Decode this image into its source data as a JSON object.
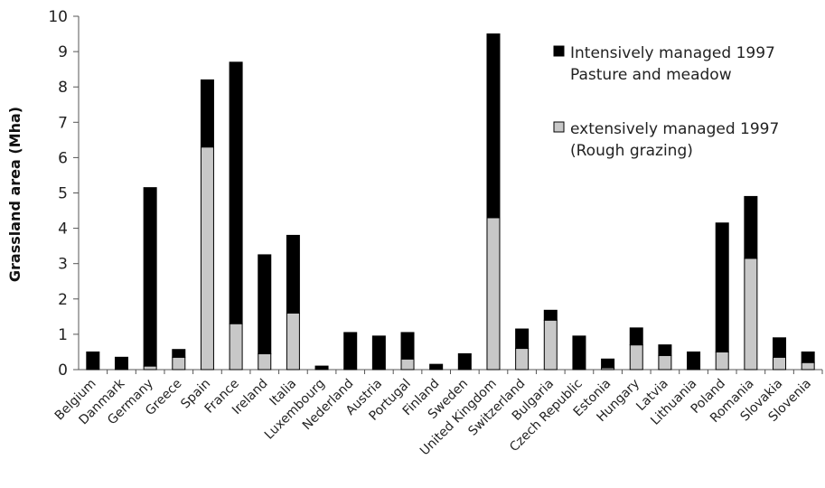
{
  "chart_data": {
    "type": "bar",
    "stacked": true,
    "ylabel": "Grassland area (Mha)",
    "ylim": [
      0,
      10
    ],
    "yticks": [
      "0",
      "1",
      "2",
      "3",
      "4",
      "5",
      "6",
      "7",
      "8",
      "9",
      "10"
    ],
    "grid": false,
    "legend_position": "top-right",
    "categories": [
      "Belgium",
      "Danmark",
      "Germany",
      "Greece",
      "Spain",
      "France",
      "Ireland",
      "Italia",
      "Luxembourg",
      "Nederland",
      "Austria",
      "Portugal",
      "Finland",
      "Sweden",
      "United Kingdom",
      "Switzerland",
      "Bulgaria",
      "Czech Republic",
      "Estonia",
      "Hungary",
      "Latvia",
      "Lithuania",
      "Poland",
      "Romania",
      "Slovakia",
      "Slovenia"
    ],
    "series": [
      {
        "name_lines": [
          "extensively managed 1997",
          "(Rough grazing)"
        ],
        "color": "#c8c8c8",
        "values": [
          0,
          0,
          0.1,
          0.35,
          6.3,
          1.3,
          0.45,
          1.6,
          0,
          0,
          0,
          0.3,
          0,
          0,
          4.3,
          0.6,
          1.4,
          0,
          0.05,
          0.7,
          0.4,
          0,
          0.5,
          3.15,
          0.35,
          0.2
        ]
      },
      {
        "name_lines": [
          "Intensively managed 1997",
          "Pasture and meadow"
        ],
        "color": "#000000",
        "values": [
          0.5,
          0.35,
          5.05,
          0.22,
          1.9,
          7.4,
          2.8,
          2.2,
          0.1,
          1.05,
          0.95,
          0.75,
          0.15,
          0.45,
          5.2,
          0.55,
          0.28,
          0.95,
          0.25,
          0.48,
          0.3,
          0.5,
          3.65,
          1.75,
          0.55,
          0.3
        ]
      }
    ]
  }
}
